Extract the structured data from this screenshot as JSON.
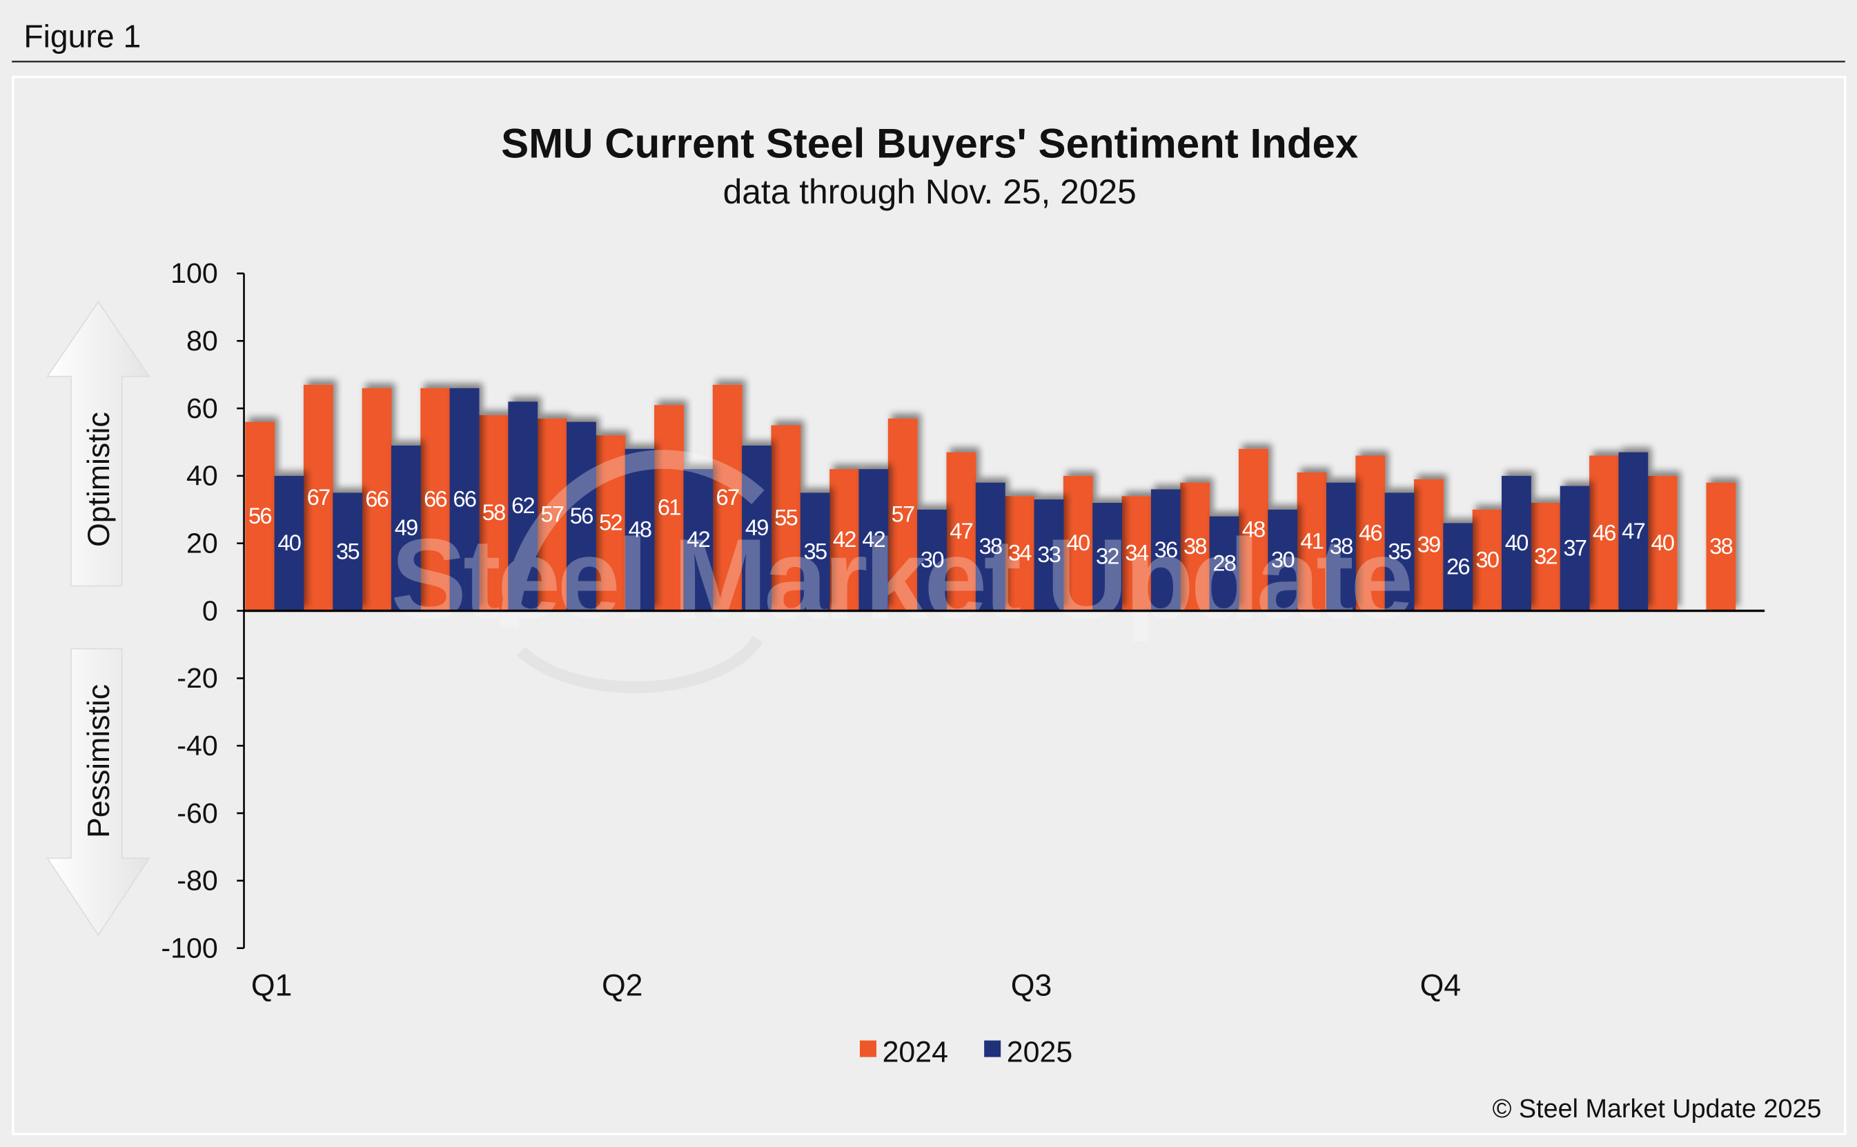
{
  "figure_label": "Figure 1",
  "copyright": "© Steel Market Update 2025",
  "watermark": "Steel Market Update",
  "side_labels": {
    "up": "Optimistic",
    "down": "Pessimistic"
  },
  "colors": {
    "2024": "#EE5829",
    "2025": "#20317A",
    "background": "#EEEEEE"
  },
  "chart_data": {
    "type": "bar",
    "title": "SMU Current Steel Buyers' Sentiment Index",
    "subtitle": "data through Nov. 25, 2025",
    "xlabel": "",
    "ylabel": "",
    "ylim": [
      -100,
      100
    ],
    "yticks": [
      100,
      80,
      60,
      40,
      20,
      0,
      -20,
      -40,
      -60,
      -80,
      -100
    ],
    "quarter_labels": [
      {
        "label": "Q1",
        "index": 0
      },
      {
        "label": "Q2",
        "index": 6
      },
      {
        "label": "Q3",
        "index": 13
      },
      {
        "label": "Q4",
        "index": 20
      }
    ],
    "legend_position": "bottom-center",
    "series": [
      {
        "name": "2024",
        "values": [
          56,
          67,
          66,
          66,
          58,
          57,
          52,
          61,
          67,
          55,
          42,
          57,
          47,
          34,
          40,
          34,
          38,
          48,
          41,
          46,
          39,
          30,
          32,
          46,
          40,
          38
        ]
      },
      {
        "name": "2025",
        "values": [
          40,
          35,
          49,
          66,
          62,
          56,
          48,
          42,
          49,
          35,
          42,
          30,
          38,
          33,
          32,
          36,
          28,
          30,
          38,
          35,
          26,
          40,
          37,
          47,
          null,
          null
        ]
      }
    ]
  }
}
